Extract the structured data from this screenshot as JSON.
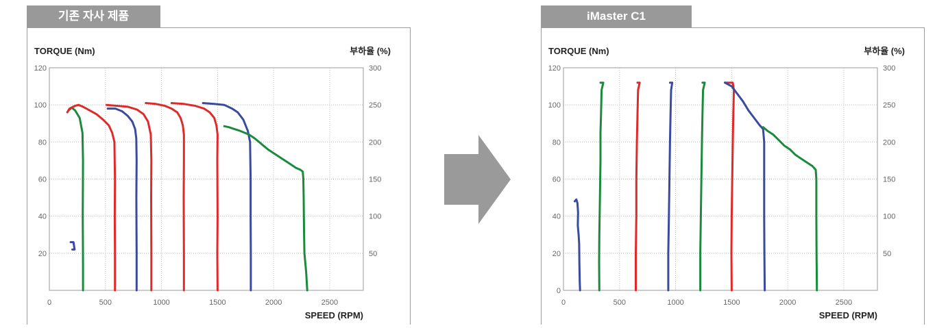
{
  "colors": {
    "green": "#1b8a3c",
    "red": "#e02a2a",
    "blue": "#3a4a9e",
    "tab": "#999999",
    "arrow": "#9a9a9a"
  },
  "arrow": {
    "icon": "right-arrow-icon"
  },
  "chart_data": [
    {
      "type": "line",
      "title": "기존 자사 제품",
      "ylabel": "TORQUE (Nm)",
      "y2label": "부하율 (%)",
      "xlabel": "SPEED (RPM)",
      "xlim": [
        0,
        2800
      ],
      "ylim": [
        0,
        120
      ],
      "y2lim": [
        0,
        300
      ],
      "xticks": [
        "0",
        "500",
        "1000",
        "1500",
        "2000",
        "2500"
      ],
      "yticks": [
        "20",
        "40",
        "60",
        "80",
        "100",
        "120"
      ],
      "y2ticks": [
        "50",
        "100",
        "150",
        "200",
        "250",
        "300"
      ],
      "grid": true,
      "series": [
        {
          "color": "green",
          "points": [
            [
              170,
              97
            ],
            [
              200,
              98.5
            ],
            [
              230,
              97
            ],
            [
              270,
              93
            ],
            [
              295,
              85
            ],
            [
              300,
              70
            ],
            [
              298,
              40
            ],
            [
              300,
              15
            ],
            [
              300,
              0
            ]
          ]
        },
        {
          "color": "blue",
          "points": [
            [
              190,
              26
            ],
            [
              215,
              26
            ],
            [
              225,
              22
            ],
            [
              205,
              22
            ]
          ]
        },
        {
          "color": "red",
          "points": [
            [
              160,
              96
            ],
            [
              180,
              98
            ],
            [
              230,
              99.5
            ],
            [
              260,
              100
            ],
            [
              300,
              99
            ],
            [
              360,
              97
            ],
            [
              420,
              95
            ],
            [
              480,
              92
            ],
            [
              530,
              89
            ],
            [
              560,
              85
            ],
            [
              580,
              80
            ],
            [
              585,
              60
            ],
            [
              583,
              40
            ],
            [
              585,
              20
            ],
            [
              585,
              0
            ]
          ]
        },
        {
          "color": "red",
          "points": [
            [
              510,
              100
            ],
            [
              600,
              99.5
            ],
            [
              700,
              99
            ],
            [
              780,
              97.5
            ],
            [
              840,
              95
            ],
            [
              880,
              91
            ],
            [
              905,
              84
            ],
            [
              910,
              70
            ],
            [
              908,
              50
            ],
            [
              910,
              20
            ],
            [
              910,
              0
            ]
          ]
        },
        {
          "color": "blue",
          "points": [
            [
              520,
              98
            ],
            [
              590,
              98
            ],
            [
              650,
              96.5
            ],
            [
              700,
              94
            ],
            [
              740,
              91
            ],
            [
              765,
              87
            ],
            [
              775,
              82
            ],
            [
              778,
              70
            ],
            [
              776,
              50
            ],
            [
              778,
              20
            ],
            [
              778,
              0
            ]
          ]
        },
        {
          "color": "red",
          "points": [
            [
              860,
              101
            ],
            [
              950,
              100.5
            ],
            [
              1030,
              99.5
            ],
            [
              1090,
              98
            ],
            [
              1140,
              96
            ],
            [
              1170,
              93
            ],
            [
              1190,
              89
            ],
            [
              1200,
              84
            ],
            [
              1200,
              70
            ],
            [
              1198,
              50
            ],
            [
              1200,
              20
            ],
            [
              1200,
              0
            ]
          ]
        },
        {
          "color": "red",
          "points": [
            [
              1090,
              101
            ],
            [
              1200,
              100.5
            ],
            [
              1300,
              99.5
            ],
            [
              1380,
              98
            ],
            [
              1430,
              96
            ],
            [
              1470,
              93
            ],
            [
              1490,
              89
            ],
            [
              1500,
              84
            ],
            [
              1498,
              70
            ],
            [
              1500,
              40
            ],
            [
              1498,
              20
            ],
            [
              1500,
              0
            ]
          ]
        },
        {
          "color": "blue",
          "points": [
            [
              1370,
              101
            ],
            [
              1470,
              100.5
            ],
            [
              1560,
              100
            ],
            [
              1630,
              98
            ],
            [
              1680,
              96
            ],
            [
              1730,
              92
            ],
            [
              1770,
              86
            ],
            [
              1790,
              80
            ],
            [
              1795,
              60
            ],
            [
              1795,
              40
            ],
            [
              1797,
              20
            ],
            [
              1797,
              0
            ]
          ]
        },
        {
          "color": "green",
          "points": [
            [
              1560,
              88.5
            ],
            [
              1600,
              88
            ],
            [
              1650,
              87
            ],
            [
              1700,
              86
            ],
            [
              1740,
              85
            ],
            [
              1780,
              84
            ],
            [
              1830,
              82
            ],
            [
              1870,
              80
            ],
            [
              1910,
              78
            ],
            [
              1950,
              76
            ],
            [
              2000,
              74
            ],
            [
              2050,
              72
            ],
            [
              2100,
              70
            ],
            [
              2150,
              68
            ],
            [
              2200,
              66
            ],
            [
              2240,
              65
            ],
            [
              2260,
              64
            ],
            [
              2265,
              60
            ],
            [
              2268,
              50
            ],
            [
              2270,
              40
            ],
            [
              2272,
              30
            ],
            [
              2275,
              20
            ],
            [
              2290,
              10
            ],
            [
              2300,
              0
            ]
          ]
        }
      ]
    },
    {
      "type": "line",
      "title": "iMaster C1",
      "ylabel": "TORQUE (Nm)",
      "y2label": "부하율 (%)",
      "xlabel": "SPEED (RPM)",
      "xlim": [
        0,
        2800
      ],
      "ylim": [
        0,
        120
      ],
      "y2lim": [
        0,
        300
      ],
      "xticks": [
        "0",
        "500",
        "1000",
        "1500",
        "2000",
        "2500"
      ],
      "yticks": [
        "0",
        "20",
        "40",
        "60",
        "80",
        "100",
        "120"
      ],
      "y2ticks": [
        "50",
        "100",
        "150",
        "200",
        "250",
        "300"
      ],
      "grid": true,
      "series": [
        {
          "color": "blue",
          "points": [
            [
              100,
              48
            ],
            [
              115,
              49
            ],
            [
              125,
              47
            ],
            [
              130,
              42
            ],
            [
              128,
              35
            ],
            [
              135,
              30
            ],
            [
              140,
              25
            ],
            [
              142,
              15
            ],
            [
              145,
              5
            ],
            [
              148,
              0
            ]
          ]
        },
        {
          "color": "green",
          "points": [
            [
              330,
              112
            ],
            [
              355,
              112
            ],
            [
              340,
              108
            ],
            [
              335,
              95
            ],
            [
              330,
              85
            ],
            [
              330,
              70
            ],
            [
              325,
              50
            ],
            [
              320,
              30
            ],
            [
              318,
              15
            ],
            [
              320,
              0
            ]
          ]
        },
        {
          "color": "red",
          "points": [
            [
              660,
              112
            ],
            [
              680,
              112
            ],
            [
              665,
              108
            ],
            [
              660,
              95
            ],
            [
              655,
              80
            ],
            [
              650,
              60
            ],
            [
              650,
              40
            ],
            [
              645,
              20
            ],
            [
              645,
              0
            ]
          ]
        },
        {
          "color": "blue",
          "points": [
            [
              950,
              112
            ],
            [
              970,
              112
            ],
            [
              960,
              108
            ],
            [
              955,
              95
            ],
            [
              950,
              80
            ],
            [
              945,
              60
            ],
            [
              940,
              40
            ],
            [
              935,
              20
            ],
            [
              935,
              0
            ]
          ]
        },
        {
          "color": "green",
          "points": [
            [
              1240,
              112
            ],
            [
              1260,
              112
            ],
            [
              1245,
              108
            ],
            [
              1240,
              95
            ],
            [
              1235,
              80
            ],
            [
              1230,
              60
            ],
            [
              1225,
              40
            ],
            [
              1220,
              20
            ],
            [
              1220,
              0
            ]
          ]
        },
        {
          "color": "red",
          "points": [
            [
              1440,
              112
            ],
            [
              1510,
              112
            ],
            [
              1520,
              108
            ],
            [
              1515,
              95
            ],
            [
              1510,
              80
            ],
            [
              1505,
              60
            ],
            [
              1500,
              40
            ],
            [
              1498,
              20
            ],
            [
              1500,
              0
            ]
          ]
        },
        {
          "color": "blue",
          "points": [
            [
              1440,
              112
            ],
            [
              1470,
              111
            ],
            [
              1500,
              110
            ],
            [
              1550,
              106
            ],
            [
              1600,
              102
            ],
            [
              1650,
              97
            ],
            [
              1700,
              93
            ],
            [
              1750,
              89
            ],
            [
              1780,
              87
            ],
            [
              1790,
              80
            ],
            [
              1790,
              60
            ],
            [
              1790,
              40
            ],
            [
              1792,
              20
            ],
            [
              1795,
              0
            ]
          ]
        },
        {
          "color": "green",
          "points": [
            [
              1780,
              88
            ],
            [
              1820,
              86
            ],
            [
              1870,
              84
            ],
            [
              1920,
              81
            ],
            [
              1970,
              78
            ],
            [
              2020,
              76
            ],
            [
              2070,
              73
            ],
            [
              2120,
              71
            ],
            [
              2170,
              69
            ],
            [
              2220,
              67
            ],
            [
              2250,
              65
            ],
            [
              2255,
              60
            ],
            [
              2255,
              40
            ],
            [
              2257,
              20
            ],
            [
              2260,
              0
            ]
          ]
        }
      ]
    }
  ]
}
